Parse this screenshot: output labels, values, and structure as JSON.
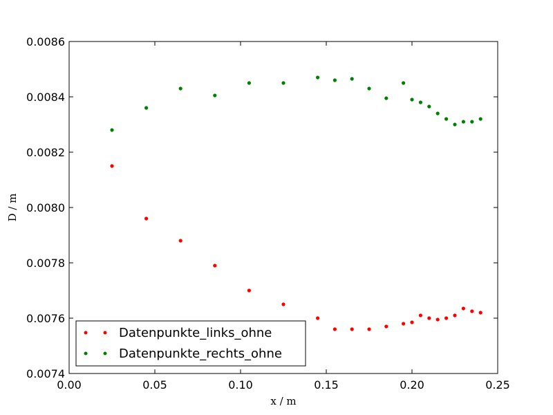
{
  "chart_data": {
    "type": "scatter",
    "xlabel": "x / m",
    "ylabel": "D / m",
    "xlim": [
      0.0,
      0.25
    ],
    "ylim": [
      0.0074,
      0.0086
    ],
    "x_ticks": [
      0.0,
      0.05,
      0.1,
      0.15,
      0.2,
      0.25
    ],
    "x_tick_labels": [
      "0.00",
      "0.05",
      "0.10",
      "0.15",
      "0.20",
      "0.25"
    ],
    "y_ticks": [
      0.0074,
      0.0076,
      0.0078,
      0.008,
      0.0082,
      0.0084,
      0.0086
    ],
    "y_tick_labels": [
      "0.0074",
      "0.0076",
      "0.0078",
      "0.0080",
      "0.0082",
      "0.0084",
      "0.0086"
    ],
    "grid": false,
    "legend_position": "lower-left",
    "series": [
      {
        "name": "Datenpunkte_links_ohne",
        "color": "#ff0000",
        "x": [
          0.025,
          0.045,
          0.065,
          0.085,
          0.105,
          0.125,
          0.145,
          0.155,
          0.165,
          0.175,
          0.185,
          0.195,
          0.2,
          0.205,
          0.21,
          0.215,
          0.22,
          0.225,
          0.23,
          0.235,
          0.24
        ],
        "y": [
          0.00815,
          0.00796,
          0.00788,
          0.00779,
          0.0077,
          0.00765,
          0.0076,
          0.00756,
          0.00756,
          0.00756,
          0.00757,
          0.00758,
          0.007585,
          0.00761,
          0.0076,
          0.007595,
          0.0076,
          0.00761,
          0.007635,
          0.007625,
          0.00762
        ]
      },
      {
        "name": "Datenpunkte_rechts_ohne",
        "color": "#008000",
        "x": [
          0.025,
          0.045,
          0.065,
          0.085,
          0.105,
          0.125,
          0.145,
          0.155,
          0.165,
          0.175,
          0.185,
          0.195,
          0.2,
          0.205,
          0.21,
          0.215,
          0.22,
          0.225,
          0.23,
          0.235,
          0.24
        ],
        "y": [
          0.00828,
          0.00836,
          0.00843,
          0.008405,
          0.00845,
          0.00845,
          0.00847,
          0.00846,
          0.008465,
          0.00843,
          0.008395,
          0.00845,
          0.00839,
          0.00838,
          0.008365,
          0.00834,
          0.00832,
          0.0083,
          0.00831,
          0.00831,
          0.00832
        ]
      }
    ]
  }
}
